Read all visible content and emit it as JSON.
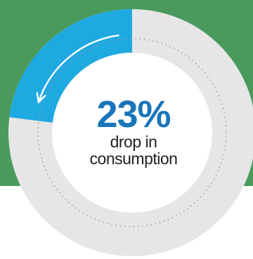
{
  "colors": {
    "band": "#4a9a5e",
    "track": "#e6e6e6",
    "highlight": "#1fa9e1",
    "inner": "#ffffff",
    "dots": "#9a9a9a",
    "arrow": "#ffffff",
    "percent": "#1a75bb",
    "label": "#231f20"
  },
  "chart_data": {
    "type": "pie",
    "values": [
      23,
      77
    ],
    "value_unit": "%",
    "highlight_index": 0,
    "center_value": "23%",
    "center_label_lines": [
      "drop in",
      "consumption"
    ]
  }
}
